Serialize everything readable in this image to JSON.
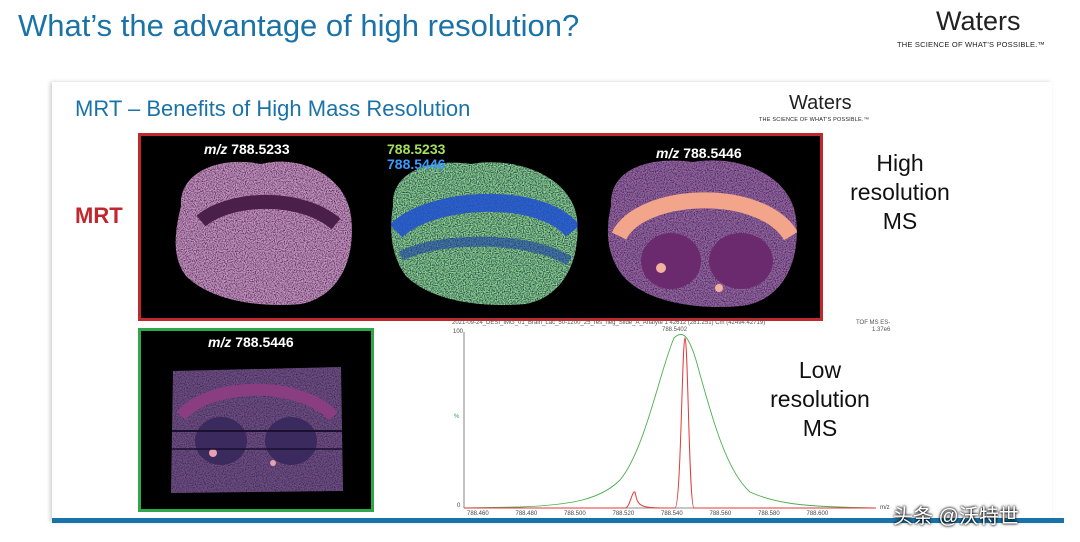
{
  "header": {
    "title": "What’s the advantage of high resolution?",
    "logo_name": "Waters",
    "logo_tagline": "THE SCIENCE OF WHAT'S POSSIBLE.™"
  },
  "slide": {
    "title": "MRT – Benefits of High Mass Resolution",
    "logo_name": "Waters",
    "logo_tagline": "THE SCIENCE OF WHAT'S POSSIBLE.™",
    "mrt_label": "MRT",
    "high_res_label": [
      "High",
      "resolution",
      "MS"
    ],
    "low_res_label": [
      "Low",
      "resolution",
      "MS"
    ],
    "images": {
      "mrt_1": {
        "prefix": "m/z",
        "value": "788.5233"
      },
      "mrt_2": {
        "value_a": "788.5233",
        "value_b": "788.5446"
      },
      "mrt_3": {
        "prefix": "m/z",
        "value": "788.5446"
      },
      "low_res": {
        "prefix": "m/z",
        "value": "788.5446"
      }
    },
    "colors": {
      "high_res_border": "#c0282e",
      "low_res_border": "#2ea84a",
      "title_blue": "#1a73a8",
      "ion_green": "#a4e05a",
      "ion_blue": "#3a9bff",
      "high_res_trace": "#e23a3a",
      "low_res_trace": "#4caf50"
    },
    "spectrum": {
      "header": "2021-09-24_DESI_IMG_01_Brain_Lac_50-1200_25_res_neg_Slide_A_Analyte 1 42612 (281.251) Cm (42494:42719)",
      "mode_label": "TOF MS ES-",
      "intensity": "1.37e6",
      "peak_label": "788.5402",
      "y_top": "100",
      "y_mid": "%",
      "y_zero": "0",
      "x_unit": "m/z",
      "x_ticks": [
        "788.460",
        "788.480",
        "788.500",
        "788.520",
        "788.540",
        "788.560",
        "788.580",
        "788.600"
      ]
    }
  },
  "watermark": "头条 @沃特世"
}
